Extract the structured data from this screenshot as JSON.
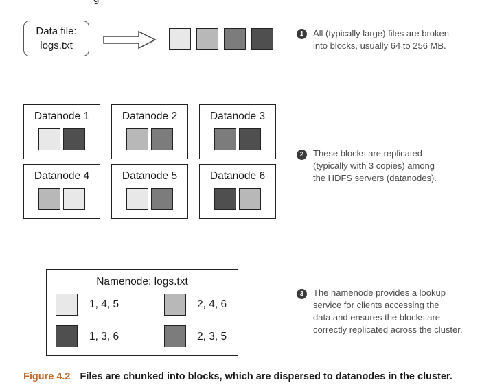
{
  "top_text": "g",
  "data_file": {
    "line1": "Data file:",
    "line2": "logs.txt"
  },
  "block_colors": {
    "b1": "#e8e8e8",
    "b2": "#b8b8b8",
    "b3": "#7c7c7c",
    "b4": "#4f4f4f"
  },
  "datanodes": [
    {
      "name": "Datanode 1",
      "blocks": [
        "b1",
        "b4"
      ]
    },
    {
      "name": "Datanode 2",
      "blocks": [
        "b2",
        "b3"
      ]
    },
    {
      "name": "Datanode 3",
      "blocks": [
        "b3",
        "b4"
      ]
    },
    {
      "name": "Datanode 4",
      "blocks": [
        "b2",
        "b1"
      ]
    },
    {
      "name": "Datanode 5",
      "blocks": [
        "b1",
        "b3"
      ]
    },
    {
      "name": "Datanode 6",
      "blocks": [
        "b4",
        "b2"
      ]
    }
  ],
  "notes": [
    {
      "number": "1",
      "lines": [
        "All (typically large) files are broken",
        "into blocks, usually 64 to 256 MB."
      ]
    },
    {
      "number": "2",
      "lines": [
        "These blocks are replicated",
        "(typically with 3 copies) among",
        "the HDFS servers (datanodes)."
      ]
    },
    {
      "number": "3",
      "lines": [
        "The namenode provides a lookup",
        "service for clients accessing the",
        "data and ensures the blocks are",
        "correctly replicated across the cluster."
      ]
    }
  ],
  "namenode": {
    "title": "Namenode: logs.txt",
    "entries": [
      {
        "block": "b1",
        "nodes": "1, 4, 5"
      },
      {
        "block": "b2",
        "nodes": "2, 4, 6"
      },
      {
        "block": "b4",
        "nodes": "1, 3, 6"
      },
      {
        "block": "b3",
        "nodes": "2, 3, 5"
      }
    ]
  },
  "caption": {
    "label": "Figure 4.2",
    "text": "Files are chunked into blocks, which are dispersed to datanodes in the cluster."
  }
}
